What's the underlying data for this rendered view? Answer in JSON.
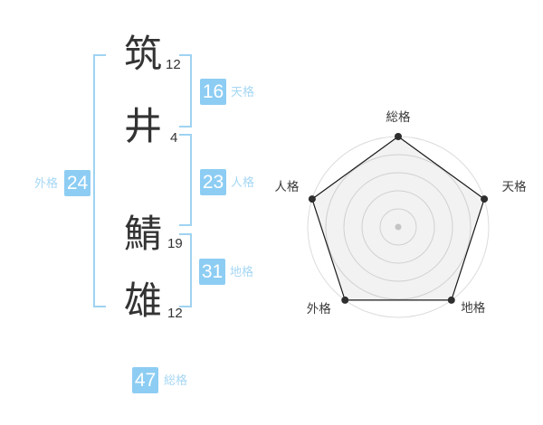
{
  "accent": {
    "badge_blue": "#8DCDF3",
    "label_blue": "#A6D7F4",
    "bracket_blue": "#9FD3F2",
    "ink": "#333333",
    "radar_ring_gray": "#dcdcdc",
    "radar_line_black": "#1a1a1a",
    "radar_center_dot_gray": "#c4c4c4"
  },
  "name": {
    "characters": [
      {
        "char": "筑",
        "strokes": "12"
      },
      {
        "char": "井",
        "strokes": "4"
      },
      {
        "char": "鯖",
        "strokes": "19"
      },
      {
        "char": "雄",
        "strokes": "12"
      }
    ]
  },
  "scores": {
    "tenkaku": {
      "label": "天格",
      "value": "16"
    },
    "jinkaku": {
      "label": "人格",
      "value": "23"
    },
    "chikaku": {
      "label": "地格",
      "value": "31"
    },
    "gaikaku": {
      "label": "外格",
      "value": "24"
    },
    "soukaku": {
      "label": "総格",
      "value": "47"
    }
  },
  "chart_data": {
    "type": "radar",
    "axes": [
      "総格",
      "天格",
      "地格",
      "外格",
      "人格"
    ],
    "values": [
      47,
      16,
      31,
      24,
      23
    ],
    "plotted_fractions": [
      1,
      1,
      1,
      1,
      1
    ],
    "rings": 5,
    "legend": "none",
    "layout_hint": "pentagon radar, 5 concentric rings, all five vertices on outer ring, filled light gray"
  }
}
